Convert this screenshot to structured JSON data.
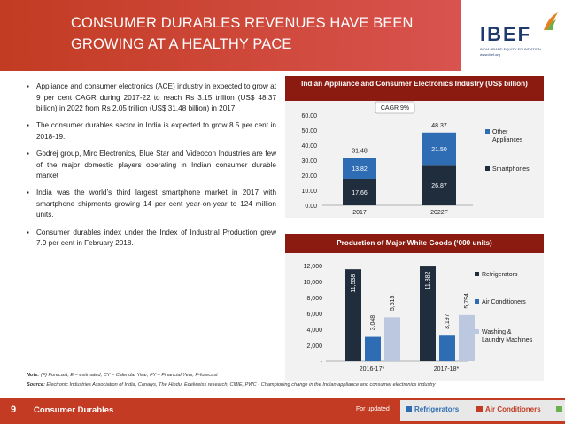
{
  "header": {
    "title_line1": "CONSUMER DURABLES REVENUES HAVE BEEN",
    "title_line2": "GROWING AT A HEALTHY PACE",
    "logo_text": "IBEF",
    "logo_sub": "INDIA BRAND EQUITY FOUNDATION",
    "logo_url": "www.ibef.org"
  },
  "bullets": [
    "Appliance and consumer electronics (ACE) industry in expected to grow at 9 per cent CAGR during 2017-22 to reach Rs 3.15 trillion (US$ 48.37 billion) in 2022 from Rs 2.05 trillion (US$ 31.48 billion) in 2017.",
    "The consumer durables sector in India is expected to grow 8.5 per cent in 2018-19.",
    "Godrej group, Mirc Electronics, Blue Star and Videocon Industries are few of the major domestic players operating in Indian consumer durable market",
    "India was the world’s third largest smartphone market in 2017 with smartphone shipments growing 14 per cent year-on-year to 124 million units.",
    "Consumer durables index under the Index of Industrial Production grew 7.9 per cent in February 2018."
  ],
  "chart_data": [
    {
      "type": "bar",
      "stacked": true,
      "title": "Indian Appliance and Consumer Electronics Industry (US$ billion)",
      "categories": [
        "2017",
        "2022F"
      ],
      "series": [
        {
          "name": "Smartphones",
          "values": [
            17.66,
            26.87
          ],
          "color": "#1f2d3d"
        },
        {
          "name": "Other Appliances",
          "values": [
            13.82,
            21.5
          ],
          "color": "#2e6db4"
        }
      ],
      "totals": [
        "31.48",
        "48.37"
      ],
      "annotation": "CAGR 9%",
      "ylim": [
        0,
        60
      ],
      "yticks": [
        "0.00",
        "10.00",
        "20.00",
        "30.00",
        "40.00",
        "50.00",
        "60.00"
      ],
      "legend": "right",
      "grid": false
    },
    {
      "type": "bar",
      "title": "Production of  Major White Goods (‘000 units)",
      "categories": [
        "2016-17*",
        "2017-18*"
      ],
      "series": [
        {
          "name": "Refrigerators",
          "values": [
            11538,
            11882
          ],
          "labels": [
            "11,538",
            "11,882"
          ],
          "color": "#1f2d3d"
        },
        {
          "name": "Air Conditioners",
          "values": [
            3048,
            3197
          ],
          "labels": [
            "3,048",
            "3,197"
          ],
          "color": "#2e6db4"
        },
        {
          "name": "Washing & Laundry Machines",
          "values": [
            5515,
            5794
          ],
          "labels": [
            "5,515",
            "5,794"
          ],
          "color": "#bcc8e0"
        }
      ],
      "legend_labels": [
        "Refrigerators",
        "Air Conditioners",
        "Washing &",
        "Laundry Machines"
      ],
      "ylim": [
        0,
        12000
      ],
      "yticks": [
        "-",
        "2,000",
        "4,000",
        "6,000",
        "8,000",
        "10,000",
        "12,000"
      ],
      "legend": "right",
      "grid": false
    }
  ],
  "notes": {
    "note_label": "Note:",
    "note_text": "(F) Forecast, E – estimated, CY – Calendar Year, FY – Financial Year, F-forecast",
    "source_label": "Source:",
    "source_text": "Electronic Industries Association of India, Canalys, The Hindu, Edelweiss research, CMIE, PWC - Championing change in the Indian appliance and consumer electronics industry"
  },
  "footer": {
    "page_number": "9",
    "section": "Consumer Durables",
    "right_text": "For updated"
  },
  "footer_strip": {
    "items": [
      "Refrigerators",
      "Air Conditioners"
    ],
    "colors": [
      "#2e6db4",
      "#c23b22",
      "#6ab04c"
    ]
  }
}
